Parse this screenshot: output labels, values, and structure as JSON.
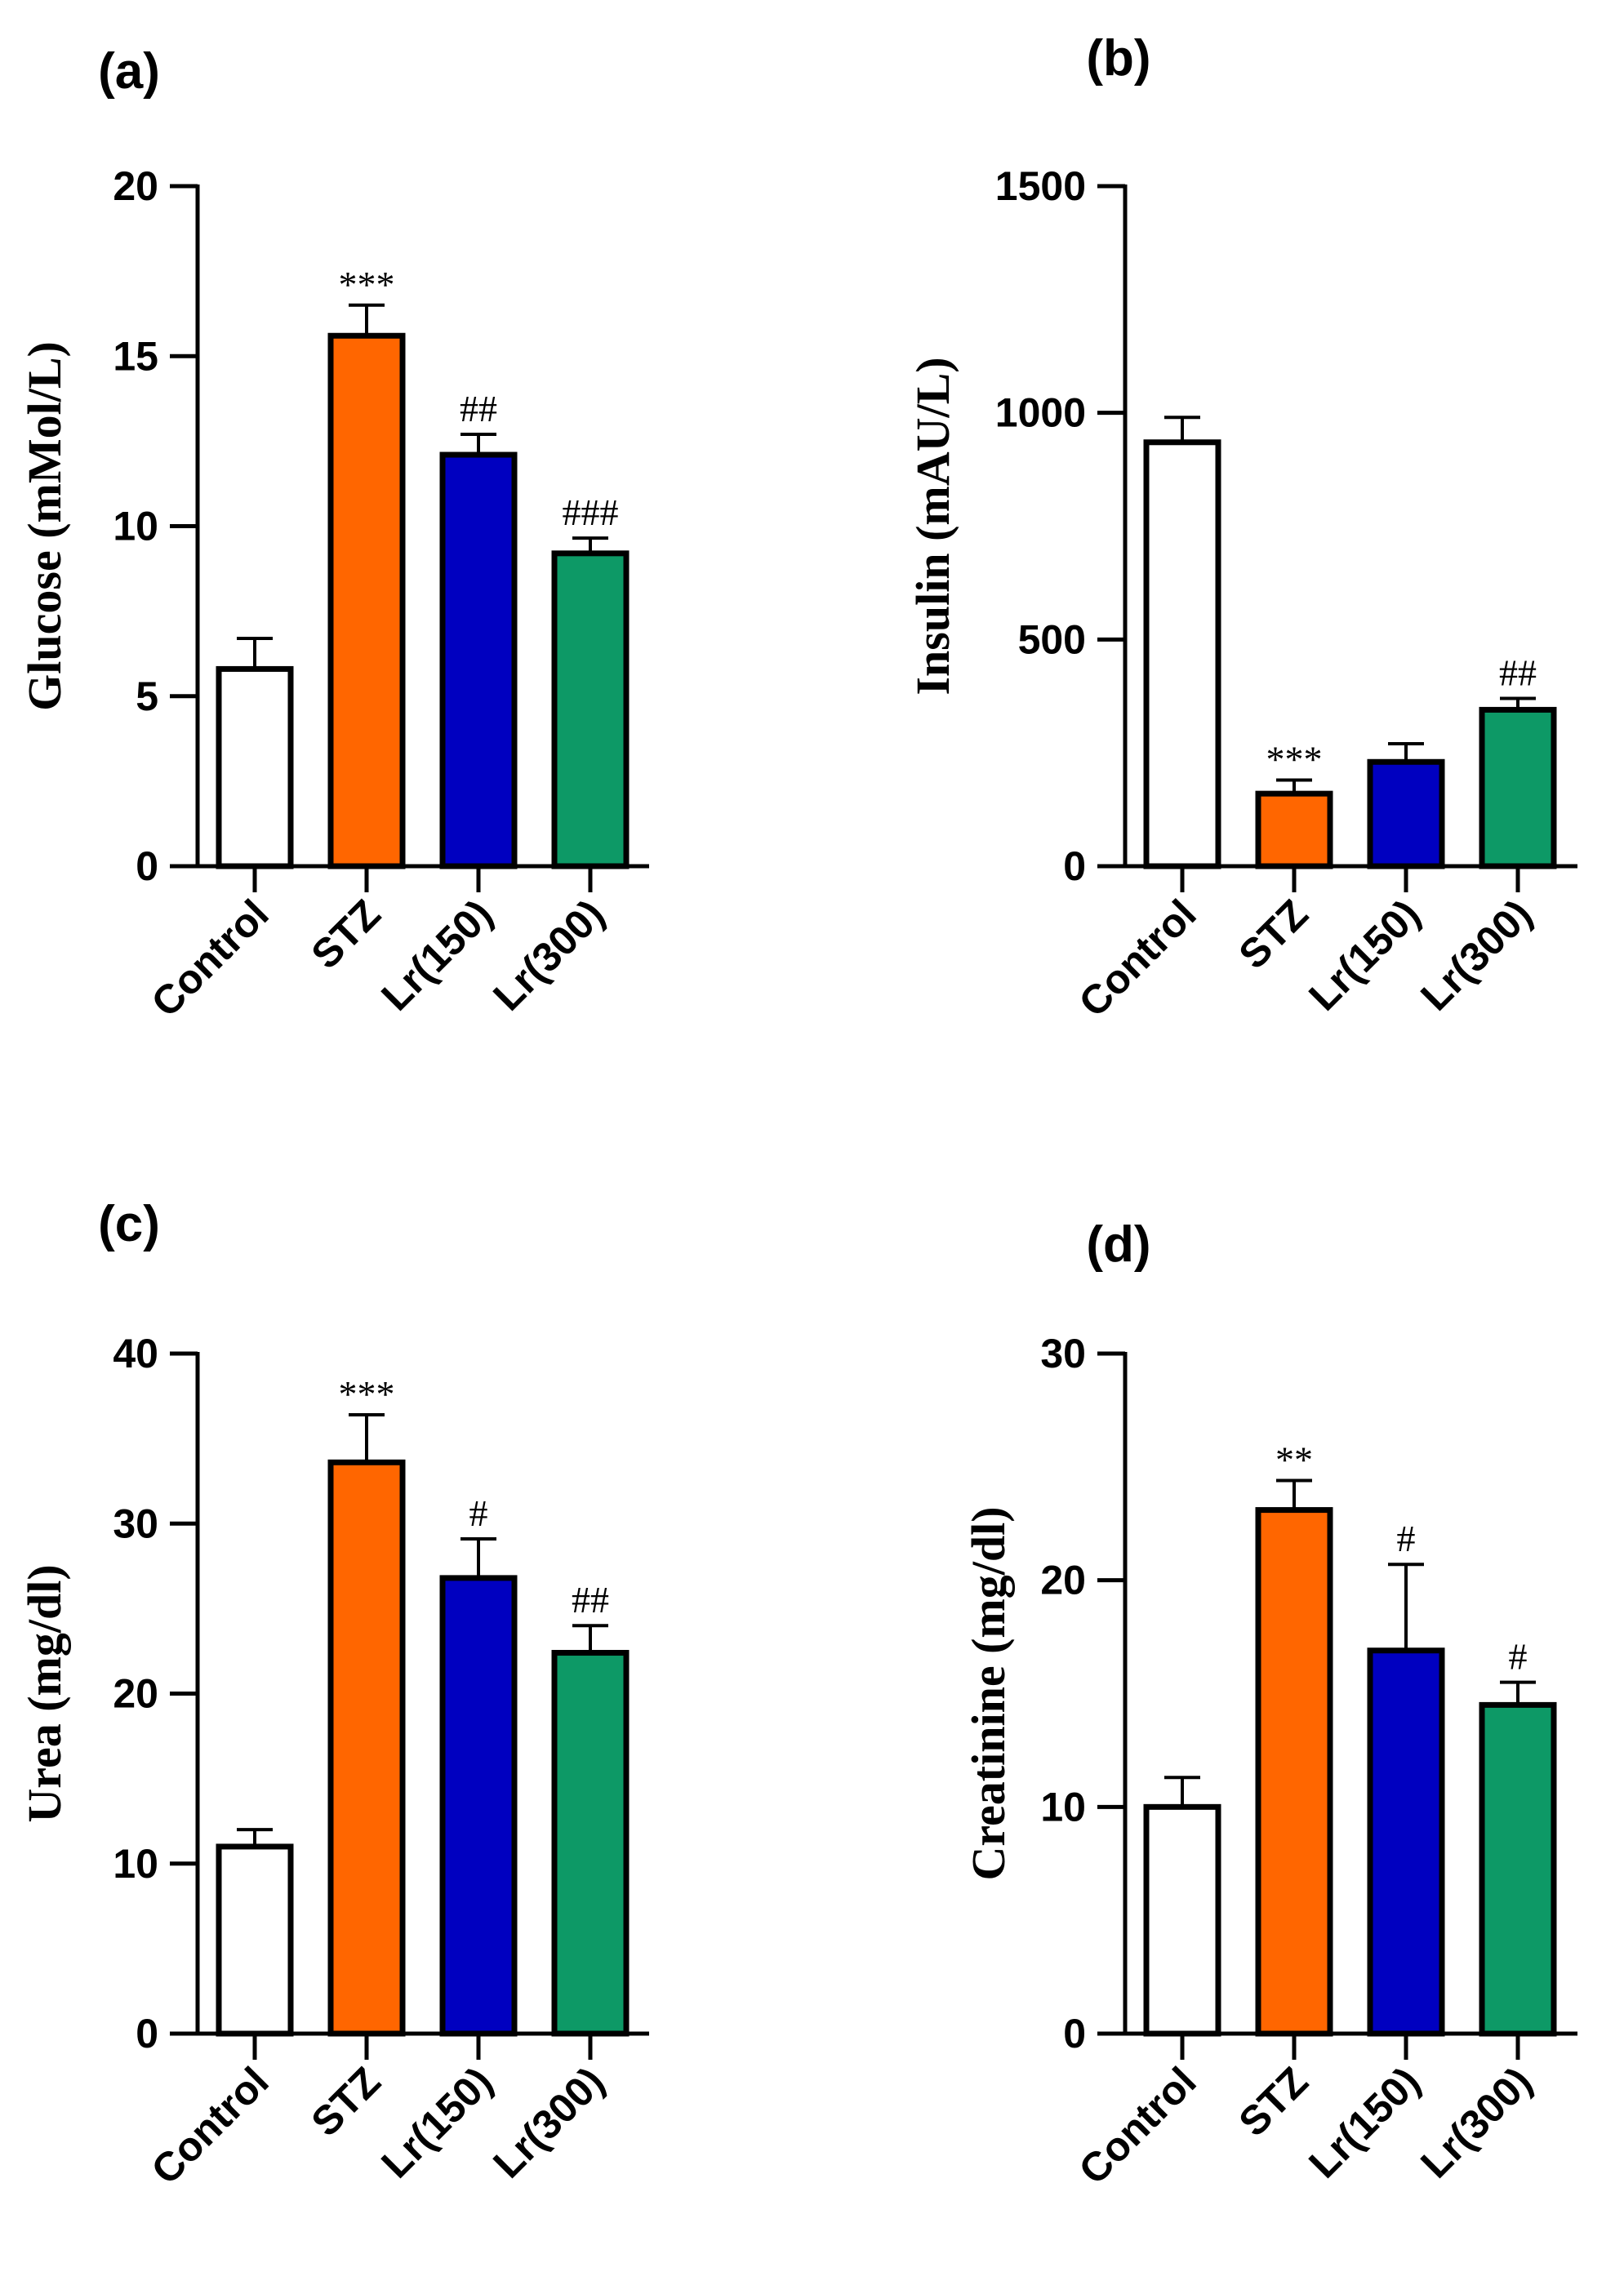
{
  "chart_data": [
    {
      "panel": "(a)",
      "type": "bar",
      "categories": [
        "Control",
        "STZ",
        "Lr(150)",
        "Lr(300)"
      ],
      "values": [
        5.8,
        15.6,
        12.1,
        9.2
      ],
      "errors": [
        0.9,
        0.9,
        0.6,
        0.45
      ],
      "annotations": [
        "",
        "***",
        "##",
        "###"
      ],
      "ylabel": "Glucose (mMol/L)",
      "ylim": [
        0,
        20
      ],
      "yticks": [
        0,
        5,
        10,
        15,
        20
      ],
      "colors": [
        "#ffffff",
        "#ff6600",
        "#0000c0",
        "#0d9966"
      ]
    },
    {
      "panel": "(b)",
      "type": "bar",
      "categories": [
        "Control",
        "STZ",
        "Lr(150)",
        "Lr(300)"
      ],
      "values": [
        935,
        160,
        230,
        345
      ],
      "errors": [
        55,
        30,
        40,
        25
      ],
      "annotations": [
        "",
        "***",
        "",
        "##"
      ],
      "ylabel": "Insulin (mAU/L)",
      "ylim": [
        0,
        1500
      ],
      "yticks": [
        0,
        500,
        1000,
        1500
      ],
      "colors": [
        "#ffffff",
        "#ff6600",
        "#0000c0",
        "#0d9966"
      ]
    },
    {
      "panel": "(c)",
      "type": "bar",
      "categories": [
        "Control",
        "STZ",
        "Lr(150)",
        "Lr(300)"
      ],
      "values": [
        11.0,
        33.6,
        26.8,
        22.4
      ],
      "errors": [
        1.0,
        2.8,
        2.3,
        1.6
      ],
      "annotations": [
        "",
        "***",
        "#",
        "##"
      ],
      "ylabel": "Urea (mg/dl)",
      "ylim": [
        0,
        40
      ],
      "yticks": [
        0,
        10,
        20,
        30,
        40
      ],
      "colors": [
        "#ffffff",
        "#ff6600",
        "#0000c0",
        "#0d9966"
      ]
    },
    {
      "panel": "(d)",
      "type": "bar",
      "categories": [
        "Control",
        "STZ",
        "Lr(150)",
        "Lr(300)"
      ],
      "values": [
        10.0,
        23.1,
        16.9,
        14.5
      ],
      "errors": [
        1.3,
        1.3,
        3.8,
        1.0
      ],
      "annotations": [
        "",
        "**",
        "#",
        "#"
      ],
      "ylabel": "Creatinine (mg/dl)",
      "ylim": [
        0,
        30
      ],
      "yticks": [
        0,
        10,
        20,
        30
      ],
      "colors": [
        "#ffffff",
        "#ff6600",
        "#0000c0",
        "#0d9966"
      ]
    }
  ]
}
